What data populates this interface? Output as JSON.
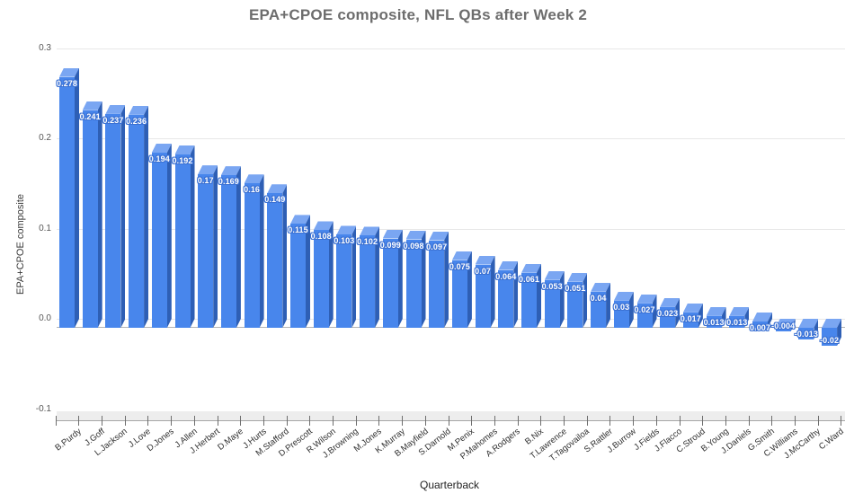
{
  "chart_data": {
    "type": "bar",
    "title": "EPA+CPOE composite, NFL QBs after Week 2",
    "xlabel": "Quarterback",
    "ylabel": "EPA+CPOE composite",
    "ylim": [
      -0.1,
      0.3
    ],
    "yticks": [
      "0.3",
      "0.2",
      "0.1",
      "0.0",
      "-0.1"
    ],
    "grid": true,
    "legend": "none",
    "style": "3d-column",
    "categories": [
      "B.Purdy",
      "J.Goff",
      "L.Jackson",
      "J.Love",
      "D.Jones",
      "J.Allen",
      "J.Herbert",
      "D.Maye",
      "J.Hurts",
      "M.Stafford",
      "D.Prescott",
      "R.Wilson",
      "J.Browning",
      "M.Jones",
      "K.Murray",
      "B.Mayfield",
      "S.Darnold",
      "M.Penix",
      "P.Mahomes",
      "A.Rodgers",
      "B.Nix",
      "T.Lawrence",
      "T.Tagovailoa",
      "S.Rattler",
      "J.Burrow",
      "J.Fields",
      "J.Flacco",
      "C.Stroud",
      "B.Young",
      "J.Daniels",
      "G.Smith",
      "C.Williams",
      "J.McCarthy",
      "C.Ward"
    ],
    "values": [
      0.278,
      0.241,
      0.237,
      0.236,
      0.194,
      0.192,
      0.17,
      0.169,
      0.16,
      0.149,
      0.115,
      0.108,
      0.103,
      0.102,
      0.099,
      0.098,
      0.097,
      0.075,
      0.07,
      0.064,
      0.061,
      0.053,
      0.051,
      0.04,
      0.03,
      0.027,
      0.023,
      0.017,
      0.013,
      0.013,
      0.007,
      -0.004,
      -0.013,
      -0.02
    ],
    "value_labels": [
      "0.278",
      "0.241",
      "0.237",
      "0.236",
      "0.194",
      "0.192",
      "0.17",
      "0.169",
      "0.16",
      "0.149",
      "0.115",
      "0.108",
      "0.103",
      "0.102",
      "0.099",
      "0.098",
      "0.097",
      "0.075",
      "0.07",
      "0.064",
      "0.061",
      "0.053",
      "0.051",
      "0.04",
      "0.03",
      "0.027",
      "0.023",
      "0.017",
      "0.013",
      "0.013",
      "0.007",
      "-0.004",
      "-0.013",
      "-0.02"
    ],
    "colors": {
      "bar_front": "#4886ec",
      "bar_top": "#7aa6f2",
      "bar_side": "#2e5fb5",
      "value_text": "#ffffff",
      "value_halo": "#3b71d3",
      "gridline": "#e8e8e8",
      "zero_line": "#b4b4b4",
      "title_text": "#6d6d6d"
    }
  }
}
